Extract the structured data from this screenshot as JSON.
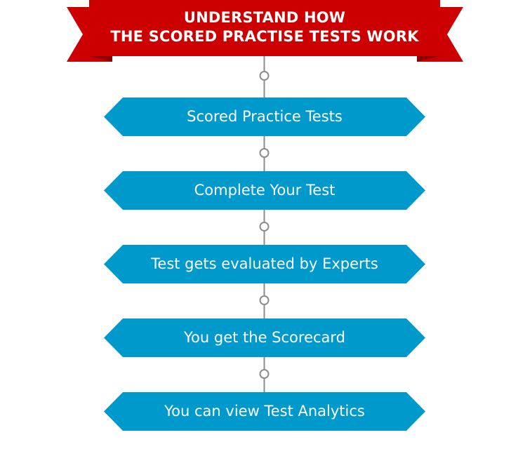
{
  "banner": {
    "line1": "UNDERSTAND HOW",
    "line2": "THE SCORED PRACTISE TESTS WORK"
  },
  "steps": [
    {
      "label": "Scored Practice Tests"
    },
    {
      "label": "Complete Your Test"
    },
    {
      "label": "Test gets evaluated by Experts"
    },
    {
      "label": "You get the Scorecard"
    },
    {
      "label": "You can view Test Analytics"
    }
  ],
  "colors": {
    "banner_red": "#cc0000",
    "banner_fold": "#8b0000",
    "step_blue": "#0099cc",
    "connector_gray": "#8c8c8c",
    "text": "#ffffff"
  }
}
